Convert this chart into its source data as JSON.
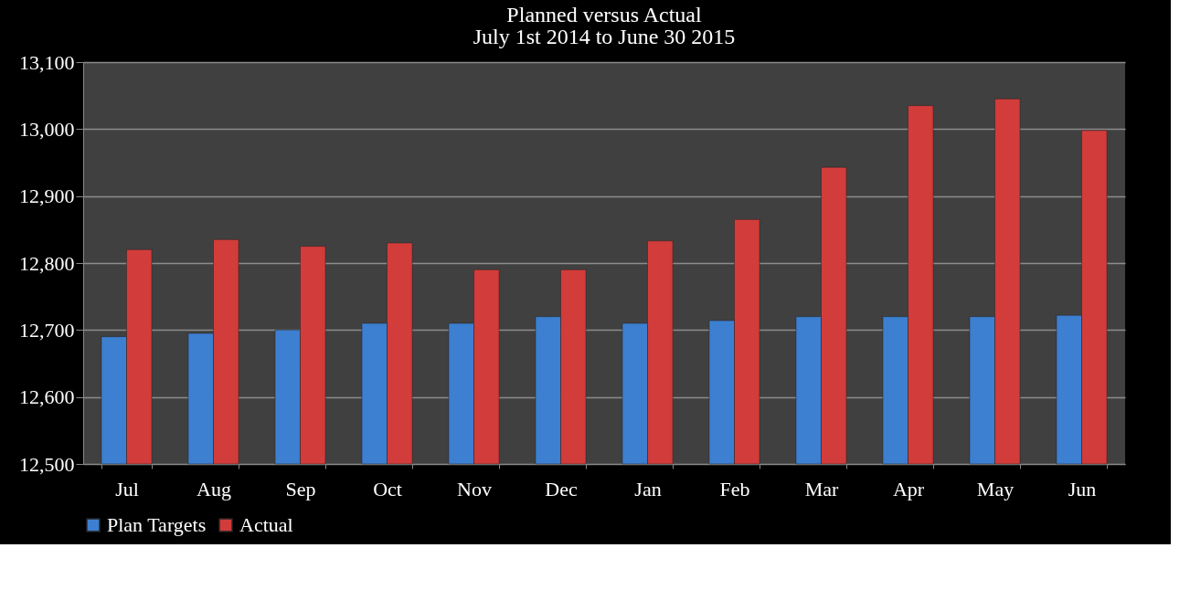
{
  "chart_data": {
    "type": "bar",
    "title": "Planned versus Actual",
    "subtitle": "July 1st 2014 to June 30 2015",
    "categories": [
      "Jul",
      "Aug",
      "Sep",
      "Oct",
      "Nov",
      "Dec",
      "Jan",
      "Feb",
      "Mar",
      "Apr",
      "May",
      "Jun"
    ],
    "series": [
      {
        "name": "Plan Targets",
        "color": "#3d7fd0",
        "values": [
          12690,
          12695,
          12700,
          12710,
          12710,
          12720,
          12710,
          12714,
          12720,
          12720,
          12720,
          12722
        ]
      },
      {
        "name": "Actual",
        "color": "#d23c3a",
        "values": [
          12820,
          12835,
          12825,
          12830,
          12790,
          12790,
          12833,
          12865,
          12943,
          13035,
          13045,
          12998
        ]
      }
    ],
    "ylim": [
      12500,
      13100
    ],
    "yticks": [
      {
        "value": 12500,
        "label": "12,500"
      },
      {
        "value": 12600,
        "label": "12,600"
      },
      {
        "value": 12700,
        "label": "12,700"
      },
      {
        "value": 12800,
        "label": "12,800"
      },
      {
        "value": 12900,
        "label": "12,900"
      },
      {
        "value": 13000,
        "label": "13,000"
      },
      {
        "value": 13100,
        "label": "13,100"
      }
    ],
    "grid": "y",
    "legend": "bottom"
  }
}
